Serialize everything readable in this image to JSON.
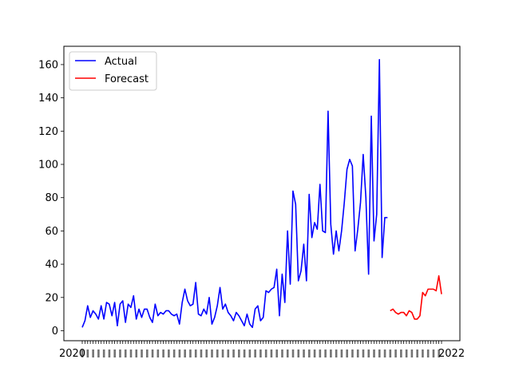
{
  "chart_data": {
    "type": "line",
    "title": "",
    "xlabel": "",
    "ylabel": "",
    "ylim": [
      -6,
      171
    ],
    "yticks": [
      0,
      20,
      40,
      60,
      80,
      100,
      120,
      140,
      160
    ],
    "x_tick_labels_note": "dense overlapping date tick labels, illegible",
    "x_tick_left_text": "2020",
    "x_tick_right_text": "2022",
    "legend": {
      "placement": "top-left",
      "frame": true
    },
    "grid": false,
    "series": [
      {
        "name": "Actual",
        "color": "#0000ff",
        "values": [
          2,
          6,
          15,
          8,
          12,
          10,
          7,
          15,
          7,
          17,
          16,
          9,
          17,
          3,
          16,
          18,
          5,
          16,
          14,
          21,
          7,
          13,
          8,
          13,
          13,
          8,
          5,
          16,
          9,
          11,
          10,
          12,
          12,
          10,
          9,
          10,
          4,
          17,
          25,
          18,
          15,
          16,
          29,
          10,
          9,
          13,
          10,
          20,
          4,
          8,
          15,
          26,
          13,
          16,
          11,
          9,
          6,
          11,
          9,
          6,
          3,
          10,
          4,
          2,
          13,
          15,
          6,
          8,
          24,
          23,
          25,
          26,
          37,
          9,
          34,
          17,
          60,
          28,
          84,
          76,
          30,
          36,
          52,
          30,
          82,
          56,
          65,
          61,
          88,
          60,
          59,
          132,
          64,
          46,
          60,
          48,
          60,
          77,
          97,
          103,
          99,
          48,
          61,
          77,
          106,
          80,
          34,
          129,
          54,
          70,
          163,
          44,
          68,
          68
        ],
        "x_start": 0
      },
      {
        "name": "Forecast",
        "color": "#ff0000",
        "values": [
          12,
          13,
          11,
          10,
          11,
          11,
          9,
          12,
          11,
          7,
          7,
          9,
          23,
          21,
          25,
          25,
          25,
          24,
          33,
          22
        ],
        "x_start": 114
      }
    ]
  }
}
